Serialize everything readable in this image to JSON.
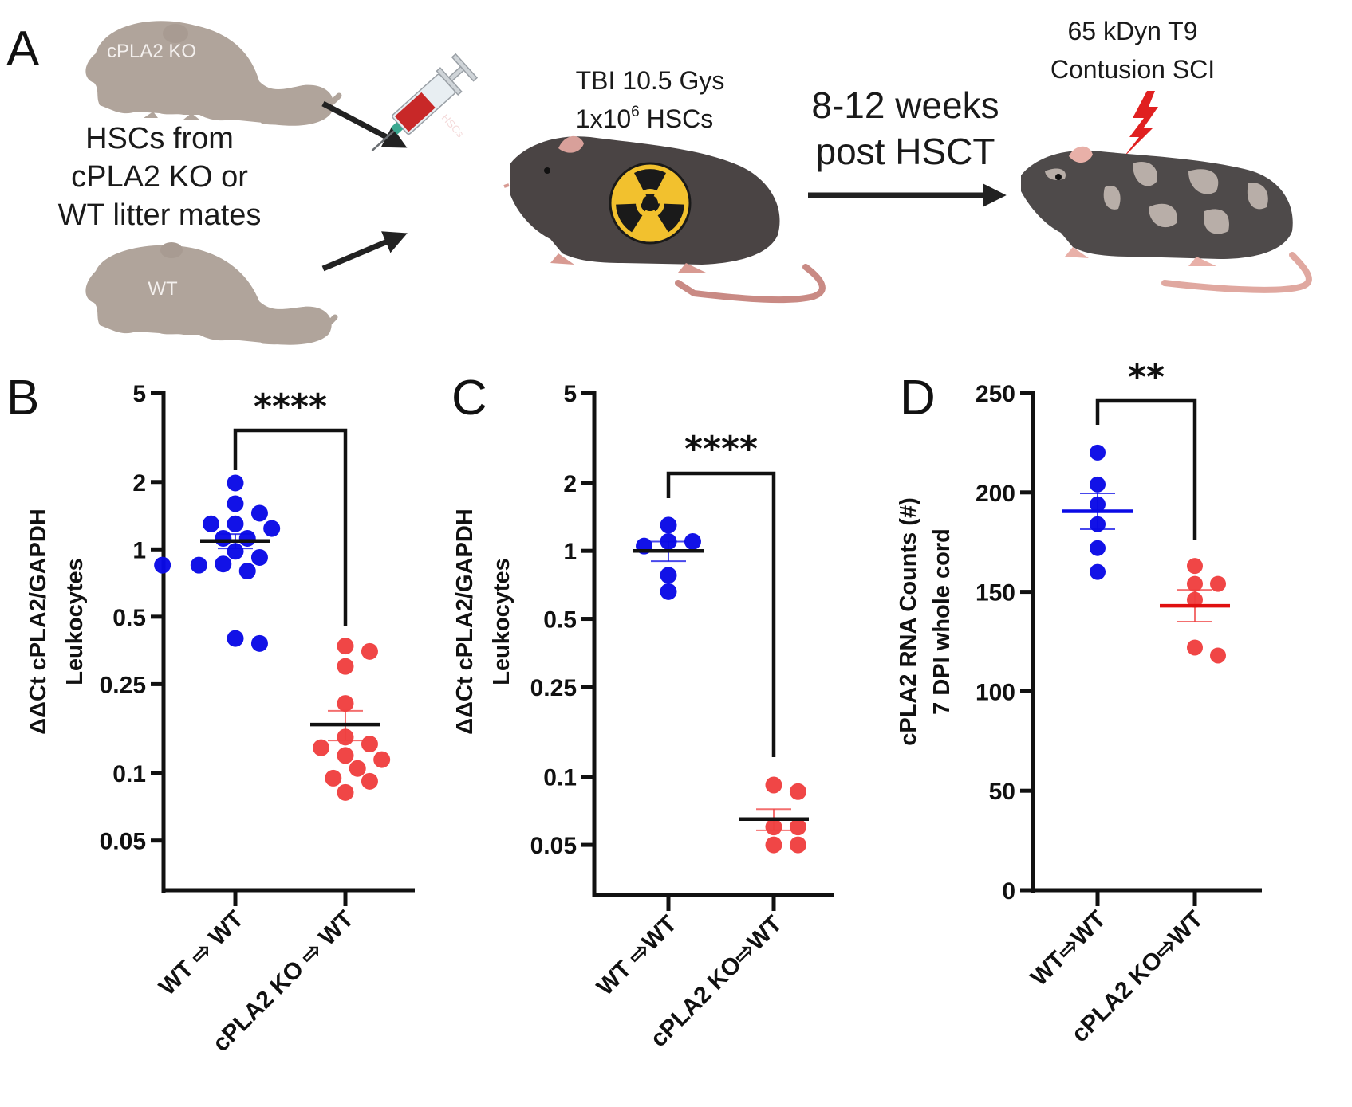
{
  "figure": {
    "panel_labels": [
      "A",
      "B",
      "C",
      "D"
    ],
    "schematic": {
      "donor_ko_label": "cPLA2 KO",
      "donor_wt_label": "WT",
      "donor_text": [
        "HSCs from",
        "cPLA2 KO or",
        "WT litter mates"
      ],
      "syringe_label": "HSCs",
      "recipient_text_line1": "TBI 10.5 Gys",
      "recipient_text_line2_prefix": "1x10",
      "recipient_text_line2_sup": "6",
      "recipient_text_line2_suffix": " HSCs",
      "timeline_text": [
        "8-12 weeks",
        "post HSCT"
      ],
      "injury_text": [
        "65 kDyn T9",
        "Contusion SCI"
      ],
      "icons": [
        "mouse-silhouette-icon",
        "syringe-icon",
        "radiation-icon",
        "arrow-icon",
        "lightning-bolt-icon",
        "chimeric-mouse-icon"
      ],
      "colors": {
        "donor_mouse": "#b0a49b",
        "recipient_mouse": "#4a4444",
        "radiation_yellow": "#f2c12e",
        "lightning_red": "#e02020",
        "patch_gray": "#b8aea8",
        "skin_pink": "#d89a92"
      }
    }
  },
  "chart_data": [
    {
      "panel": "B",
      "type": "scatter",
      "plot_style": "dot plot with mean ± SEM",
      "title": "",
      "ylabel": [
        "ΔΔCt cPLA2/GAPDH",
        "Leukocytes"
      ],
      "yscale": "log",
      "ylim": [
        0.03,
        5
      ],
      "yticks": [
        5,
        2,
        1,
        0.5,
        0.25,
        0.1,
        0.05
      ],
      "ytick_labels": [
        "5",
        "2",
        "1",
        "0.5",
        "0.25",
        "0.1",
        "0.05"
      ],
      "categories": [
        "WT ⇨ WT",
        "cPLA2 KO ⇨ WT"
      ],
      "significance": "****",
      "grid": false,
      "legend": "none",
      "series": [
        {
          "name": "WT ⇨ WT",
          "color": "#0a0ae6",
          "mean_line_color": "#111111",
          "values": [
            1.98,
            1.6,
            1.45,
            1.3,
            1.3,
            1.24,
            1.12,
            1.12,
            0.98,
            0.92,
            0.85,
            0.85,
            0.86,
            0.8,
            0.4,
            0.38
          ],
          "mean": 1.09,
          "sem": 0.08
        },
        {
          "name": "cPLA2 KO ⇨ WT",
          "color": "#f04040",
          "mean_line_color": "#111111",
          "values": [
            0.37,
            0.35,
            0.3,
            0.205,
            0.145,
            0.135,
            0.13,
            0.12,
            0.115,
            0.105,
            0.095,
            0.092,
            0.082
          ],
          "mean": 0.165,
          "sem": 0.025
        }
      ]
    },
    {
      "panel": "C",
      "type": "scatter",
      "plot_style": "dot plot with mean ± SEM",
      "title": "",
      "ylabel": [
        "ΔΔCt cPLA2/GAPDH",
        "Leukocytes"
      ],
      "yscale": "log",
      "ylim": [
        0.03,
        5
      ],
      "yticks": [
        5,
        2,
        1,
        0.5,
        0.25,
        0.1,
        0.05
      ],
      "ytick_labels": [
        "5",
        "2",
        "1",
        "0.5",
        "0.25",
        "0.1",
        "0.05"
      ],
      "categories": [
        "WT ⇨WT",
        "cPLA2 KO⇨WT"
      ],
      "significance": "****",
      "grid": false,
      "legend": "none",
      "series": [
        {
          "name": "WT ⇨WT",
          "color": "#0a0ae6",
          "mean_line_color": "#111111",
          "values": [
            1.3,
            1.1,
            1.1,
            1.05,
            0.78,
            0.66
          ],
          "mean": 1.0,
          "sem": 0.1
        },
        {
          "name": "cPLA2 KO⇨WT",
          "color": "#f04040",
          "mean_line_color": "#111111",
          "values": [
            0.092,
            0.086,
            0.06,
            0.06,
            0.05,
            0.05
          ],
          "mean": 0.065,
          "sem": 0.007
        }
      ]
    },
    {
      "panel": "D",
      "type": "scatter",
      "plot_style": "dot plot with mean ± SEM",
      "title": "",
      "ylabel": [
        "cPLA2 RNA Counts (#)",
        "7 DPI whole cord"
      ],
      "yscale": "linear",
      "ylim": [
        0,
        250
      ],
      "yticks": [
        0,
        50,
        100,
        150,
        200,
        250
      ],
      "ytick_labels": [
        "0",
        "50",
        "100",
        "150",
        "200",
        "250"
      ],
      "categories": [
        "WT⇨WT",
        "cPLA2 KO⇨WT"
      ],
      "significance": "**",
      "grid": false,
      "legend": "none",
      "series": [
        {
          "name": "WT⇨WT",
          "color": "#0a0ae6",
          "mean_line_color": "#0a0ae6",
          "values": [
            220,
            204,
            194,
            184,
            172,
            160
          ],
          "mean": 190.5,
          "sem": 9
        },
        {
          "name": "cPLA2 KO⇨WT",
          "color": "#f04040",
          "mean_line_color": "#e01010",
          "values": [
            163,
            154,
            154,
            146,
            122,
            118
          ],
          "mean": 143,
          "sem": 8
        }
      ]
    }
  ]
}
